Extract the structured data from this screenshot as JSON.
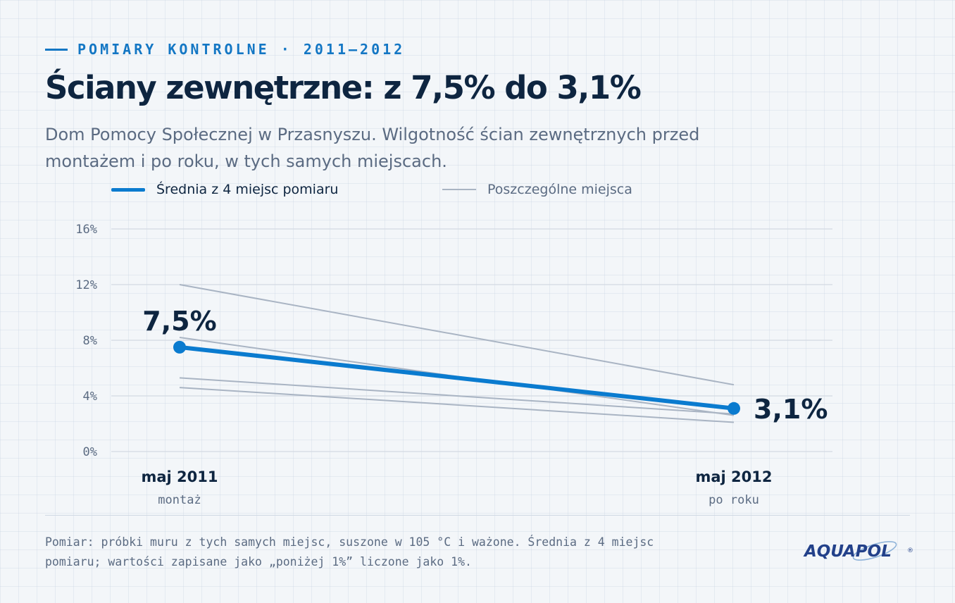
{
  "header": {
    "eyebrow": "POMIARY KONTROLNE · 2011–2012",
    "title": "Ściany zewnętrzne: z 7,5% do 3,1%",
    "subtitle": "Dom Pomocy Społecznej w Przasnyszu. Wilgotność ścian zewnętrznych przed montażem i po roku, w tych samych miejscach."
  },
  "colors": {
    "accent": "#0a7bcf",
    "muted_line": "#a9b4c3",
    "ink": "#0e2540",
    "gray_text": "#5b6b82",
    "grid": "#d3dae3"
  },
  "chart_data": {
    "type": "line",
    "x": [
      "maj 2011",
      "maj 2012"
    ],
    "x_sublabels": [
      "montaż",
      "po roku"
    ],
    "ylim": [
      0,
      16
    ],
    "yticks": [
      "0%",
      "4%",
      "8%",
      "12%",
      "16%"
    ],
    "ytick_values": [
      0,
      4,
      8,
      12,
      16
    ],
    "grid": true,
    "legend_position": "top",
    "series": [
      {
        "name": "Średnia z 4 miejsc pomiaru",
        "values": [
          7.5,
          3.1
        ],
        "labels": [
          "7,5%",
          "3,1%"
        ],
        "emphasis": true
      }
    ],
    "individual_lines": [
      {
        "values": [
          12.0,
          4.8
        ]
      },
      {
        "values": [
          8.2,
          2.6
        ]
      },
      {
        "values": [
          5.3,
          2.7
        ]
      },
      {
        "values": [
          4.6,
          2.1
        ]
      }
    ],
    "individual_legend": "Poszczególne miejsca"
  },
  "footnote": "Pomiar: próbki muru z tych samych miejsc, suszone w 105 °C i ważone. Średnia z 4 miejsc pomiaru; wartości zapisane jako „poniżej 1%” liczone jako 1%.",
  "logo": {
    "text": "AQUAPOL",
    "mark": "®"
  }
}
